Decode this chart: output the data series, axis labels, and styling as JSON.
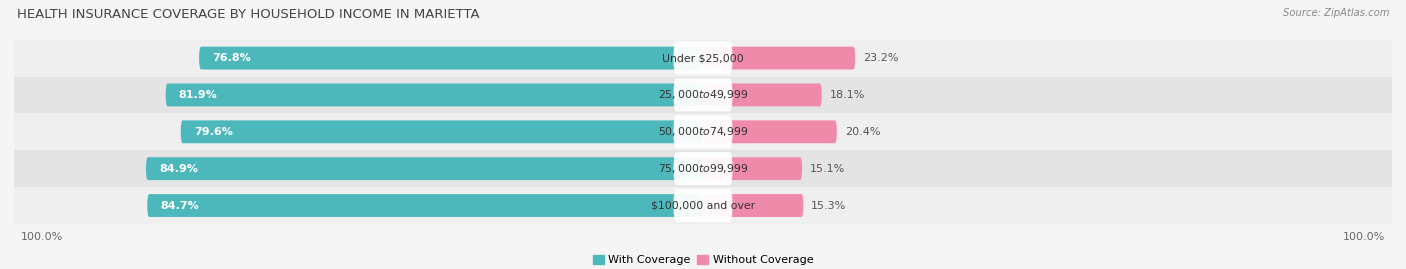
{
  "title": "HEALTH INSURANCE COVERAGE BY HOUSEHOLD INCOME IN MARIETTA",
  "source": "Source: ZipAtlas.com",
  "categories": [
    "Under $25,000",
    "$25,000 to $49,999",
    "$50,000 to $74,999",
    "$75,000 to $99,999",
    "$100,000 and over"
  ],
  "with_coverage": [
    76.8,
    81.9,
    79.6,
    84.9,
    84.7
  ],
  "without_coverage": [
    23.2,
    18.1,
    20.4,
    15.1,
    15.3
  ],
  "color_with": "#4db8bb",
  "color_without": "#f08aaa",
  "row_bg_even": "#efefef",
  "row_bg_odd": "#e4e4e4",
  "fig_bg": "#f5f5f5",
  "axis_label_left": "100.0%",
  "axis_label_right": "100.0%",
  "legend_with": "With Coverage",
  "legend_without": "Without Coverage",
  "title_fontsize": 9.5,
  "label_fontsize": 8.0,
  "cat_fontsize": 7.8,
  "bar_height": 0.62,
  "xlim": 105
}
